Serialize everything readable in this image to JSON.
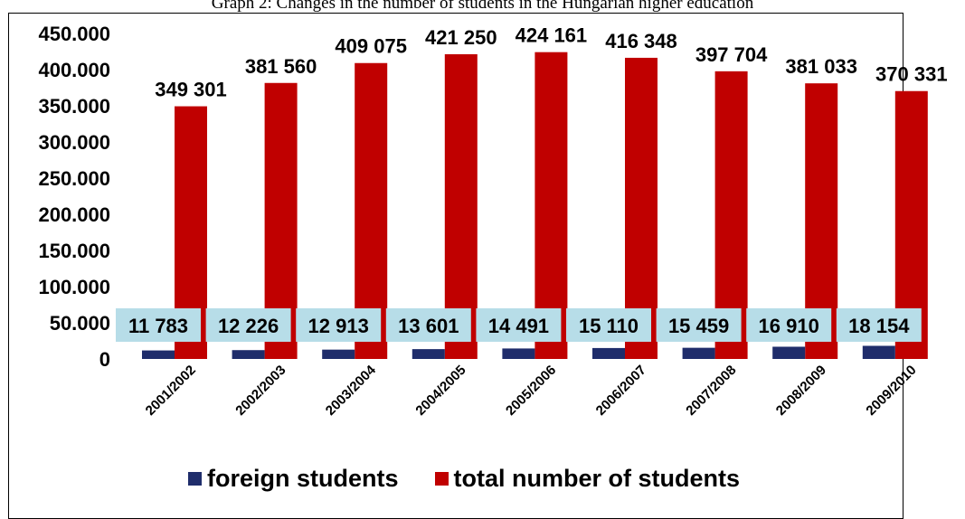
{
  "chart_data": {
    "type": "bar",
    "title": "Graph 2: Changes in the number of students in the Hungarian higher education",
    "categories": [
      "2001/2002",
      "2002/2003",
      "2003/2004",
      "2004/2005",
      "2005/2006",
      "2006/2007",
      "2007/2008",
      "2008/2009",
      "2009/2010"
    ],
    "series": [
      {
        "name": "foreign students",
        "color": "#1f2d6b",
        "values": [
          11783,
          12226,
          12913,
          13601,
          14491,
          15110,
          15459,
          16910,
          18154
        ],
        "labels": [
          "11 783",
          "12 226",
          "12 913",
          "13 601",
          "14 491",
          "15 110",
          "15 459",
          "16 910",
          "18 154"
        ],
        "label_bg": "#b7dde8"
      },
      {
        "name": "total number of students",
        "color": "#c00000",
        "values": [
          349301,
          381560,
          409075,
          421250,
          424161,
          416348,
          397704,
          381033,
          370331
        ],
        "labels": [
          "349 301",
          "381 560",
          "409 075",
          "421 250",
          "424 161",
          "416 348",
          "397 704",
          "381 033",
          "370 331"
        ]
      }
    ],
    "yticks": [
      "0",
      "50.000",
      "100.000",
      "150.000",
      "200.000",
      "250.000",
      "300.000",
      "350.000",
      "400.000",
      "450.000"
    ],
    "ylim": [
      0,
      450000
    ],
    "grid": false,
    "legend_position": "bottom"
  }
}
